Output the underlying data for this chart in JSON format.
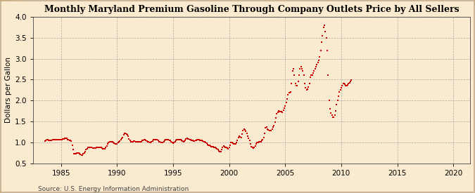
{
  "title": "Monthly Maryland Premium Gasoline Through Company Outlets Price by All Sellers",
  "ylabel": "Dollars per Gallon",
  "source": "Source: U.S. Energy Information Administration",
  "background_color": "#faebd0",
  "plot_bg_color": "#faebd0",
  "marker_color": "#cc0000",
  "ylim": [
    0.5,
    4.0
  ],
  "yticks": [
    0.5,
    1.0,
    1.5,
    2.0,
    2.5,
    3.0,
    3.5,
    4.0
  ],
  "xlim_start": 1982.5,
  "xlim_end": 2021.5,
  "xticks": [
    1985,
    1990,
    1995,
    2000,
    2005,
    2010,
    2015,
    2020
  ],
  "data": [
    [
      1983.583,
      1.03
    ],
    [
      1983.667,
      1.05
    ],
    [
      1983.75,
      1.06
    ],
    [
      1983.833,
      1.06
    ],
    [
      1983.917,
      1.05
    ],
    [
      1984.0,
      1.04
    ],
    [
      1984.083,
      1.05
    ],
    [
      1984.167,
      1.05
    ],
    [
      1984.25,
      1.06
    ],
    [
      1984.333,
      1.07
    ],
    [
      1984.417,
      1.06
    ],
    [
      1984.5,
      1.06
    ],
    [
      1984.583,
      1.06
    ],
    [
      1984.667,
      1.06
    ],
    [
      1984.75,
      1.07
    ],
    [
      1984.833,
      1.07
    ],
    [
      1984.917,
      1.07
    ],
    [
      1985.0,
      1.06
    ],
    [
      1985.083,
      1.07
    ],
    [
      1985.167,
      1.08
    ],
    [
      1985.25,
      1.08
    ],
    [
      1985.333,
      1.09
    ],
    [
      1985.417,
      1.09
    ],
    [
      1985.5,
      1.09
    ],
    [
      1985.583,
      1.07
    ],
    [
      1985.667,
      1.06
    ],
    [
      1985.75,
      1.05
    ],
    [
      1985.833,
      1.04
    ],
    [
      1985.917,
      1.03
    ],
    [
      1986.0,
      0.93
    ],
    [
      1986.083,
      0.82
    ],
    [
      1986.167,
      0.72
    ],
    [
      1986.25,
      0.72
    ],
    [
      1986.333,
      0.73
    ],
    [
      1986.417,
      0.74
    ],
    [
      1986.5,
      0.74
    ],
    [
      1986.583,
      0.74
    ],
    [
      1986.667,
      0.72
    ],
    [
      1986.75,
      0.71
    ],
    [
      1986.833,
      0.7
    ],
    [
      1986.917,
      0.7
    ],
    [
      1987.0,
      0.72
    ],
    [
      1987.083,
      0.74
    ],
    [
      1987.167,
      0.77
    ],
    [
      1987.25,
      0.82
    ],
    [
      1987.333,
      0.84
    ],
    [
      1987.417,
      0.87
    ],
    [
      1987.5,
      0.88
    ],
    [
      1987.583,
      0.88
    ],
    [
      1987.667,
      0.87
    ],
    [
      1987.75,
      0.87
    ],
    [
      1987.833,
      0.86
    ],
    [
      1987.917,
      0.86
    ],
    [
      1988.0,
      0.86
    ],
    [
      1988.083,
      0.86
    ],
    [
      1988.167,
      0.87
    ],
    [
      1988.25,
      0.87
    ],
    [
      1988.333,
      0.87
    ],
    [
      1988.417,
      0.88
    ],
    [
      1988.5,
      0.88
    ],
    [
      1988.583,
      0.87
    ],
    [
      1988.667,
      0.86
    ],
    [
      1988.75,
      0.85
    ],
    [
      1988.833,
      0.85
    ],
    [
      1988.917,
      0.85
    ],
    [
      1989.0,
      0.87
    ],
    [
      1989.083,
      0.91
    ],
    [
      1989.167,
      0.97
    ],
    [
      1989.25,
      1.0
    ],
    [
      1989.333,
      1.01
    ],
    [
      1989.417,
      1.02
    ],
    [
      1989.5,
      1.02
    ],
    [
      1989.583,
      1.01
    ],
    [
      1989.667,
      0.99
    ],
    [
      1989.75,
      0.98
    ],
    [
      1989.833,
      0.97
    ],
    [
      1989.917,
      0.97
    ],
    [
      1990.0,
      0.97
    ],
    [
      1990.083,
      0.99
    ],
    [
      1990.167,
      1.01
    ],
    [
      1990.25,
      1.03
    ],
    [
      1990.333,
      1.07
    ],
    [
      1990.417,
      1.1
    ],
    [
      1990.5,
      1.12
    ],
    [
      1990.583,
      1.18
    ],
    [
      1990.667,
      1.22
    ],
    [
      1990.75,
      1.21
    ],
    [
      1990.833,
      1.2
    ],
    [
      1990.917,
      1.18
    ],
    [
      1991.0,
      1.14
    ],
    [
      1991.083,
      1.08
    ],
    [
      1991.167,
      1.04
    ],
    [
      1991.25,
      1.02
    ],
    [
      1991.333,
      1.02
    ],
    [
      1991.417,
      1.02
    ],
    [
      1991.5,
      1.03
    ],
    [
      1991.583,
      1.03
    ],
    [
      1991.667,
      1.02
    ],
    [
      1991.75,
      1.01
    ],
    [
      1991.833,
      1.01
    ],
    [
      1991.917,
      1.01
    ],
    [
      1992.0,
      1.01
    ],
    [
      1992.083,
      1.01
    ],
    [
      1992.167,
      1.02
    ],
    [
      1992.25,
      1.04
    ],
    [
      1992.333,
      1.05
    ],
    [
      1992.417,
      1.06
    ],
    [
      1992.5,
      1.06
    ],
    [
      1992.583,
      1.05
    ],
    [
      1992.667,
      1.03
    ],
    [
      1992.75,
      1.02
    ],
    [
      1992.833,
      1.01
    ],
    [
      1992.917,
      1.0
    ],
    [
      1993.0,
      1.0
    ],
    [
      1993.083,
      1.01
    ],
    [
      1993.167,
      1.03
    ],
    [
      1993.25,
      1.06
    ],
    [
      1993.333,
      1.07
    ],
    [
      1993.417,
      1.07
    ],
    [
      1993.5,
      1.07
    ],
    [
      1993.583,
      1.06
    ],
    [
      1993.667,
      1.04
    ],
    [
      1993.75,
      1.02
    ],
    [
      1993.833,
      1.01
    ],
    [
      1993.917,
      1.0
    ],
    [
      1994.0,
      1.0
    ],
    [
      1994.083,
      1.0
    ],
    [
      1994.167,
      1.01
    ],
    [
      1994.25,
      1.04
    ],
    [
      1994.333,
      1.06
    ],
    [
      1994.417,
      1.07
    ],
    [
      1994.5,
      1.07
    ],
    [
      1994.583,
      1.06
    ],
    [
      1994.667,
      1.05
    ],
    [
      1994.75,
      1.04
    ],
    [
      1994.833,
      1.02
    ],
    [
      1994.917,
      0.99
    ],
    [
      1995.0,
      0.98
    ],
    [
      1995.083,
      0.99
    ],
    [
      1995.167,
      1.01
    ],
    [
      1995.25,
      1.04
    ],
    [
      1995.333,
      1.06
    ],
    [
      1995.417,
      1.07
    ],
    [
      1995.5,
      1.07
    ],
    [
      1995.583,
      1.07
    ],
    [
      1995.667,
      1.06
    ],
    [
      1995.75,
      1.05
    ],
    [
      1995.833,
      1.03
    ],
    [
      1995.917,
      1.02
    ],
    [
      1996.0,
      1.03
    ],
    [
      1996.083,
      1.05
    ],
    [
      1996.167,
      1.08
    ],
    [
      1996.25,
      1.09
    ],
    [
      1996.333,
      1.08
    ],
    [
      1996.417,
      1.08
    ],
    [
      1996.5,
      1.07
    ],
    [
      1996.583,
      1.06
    ],
    [
      1996.667,
      1.05
    ],
    [
      1996.75,
      1.04
    ],
    [
      1996.833,
      1.03
    ],
    [
      1996.917,
      1.03
    ],
    [
      1997.0,
      1.04
    ],
    [
      1997.083,
      1.05
    ],
    [
      1997.167,
      1.06
    ],
    [
      1997.25,
      1.07
    ],
    [
      1997.333,
      1.06
    ],
    [
      1997.417,
      1.05
    ],
    [
      1997.5,
      1.04
    ],
    [
      1997.583,
      1.04
    ],
    [
      1997.667,
      1.03
    ],
    [
      1997.75,
      1.02
    ],
    [
      1997.833,
      1.01
    ],
    [
      1997.917,
      1.0
    ],
    [
      1998.0,
      0.98
    ],
    [
      1998.083,
      0.95
    ],
    [
      1998.167,
      0.93
    ],
    [
      1998.25,
      0.92
    ],
    [
      1998.333,
      0.91
    ],
    [
      1998.417,
      0.9
    ],
    [
      1998.5,
      0.9
    ],
    [
      1998.583,
      0.89
    ],
    [
      1998.667,
      0.88
    ],
    [
      1998.75,
      0.87
    ],
    [
      1998.833,
      0.86
    ],
    [
      1998.917,
      0.84
    ],
    [
      1999.0,
      0.82
    ],
    [
      1999.083,
      0.8
    ],
    [
      1999.167,
      0.78
    ],
    [
      1999.25,
      0.78
    ],
    [
      1999.333,
      0.82
    ],
    [
      1999.417,
      0.88
    ],
    [
      1999.5,
      0.91
    ],
    [
      1999.583,
      0.9
    ],
    [
      1999.667,
      0.88
    ],
    [
      1999.75,
      0.87
    ],
    [
      1999.833,
      0.86
    ],
    [
      1999.917,
      0.85
    ],
    [
      2000.0,
      0.87
    ],
    [
      2000.083,
      0.92
    ],
    [
      2000.167,
      0.99
    ],
    [
      2000.25,
      0.99
    ],
    [
      2000.333,
      0.98
    ],
    [
      2000.417,
      0.97
    ],
    [
      2000.5,
      0.96
    ],
    [
      2000.583,
      0.97
    ],
    [
      2000.667,
      0.99
    ],
    [
      2000.75,
      1.05
    ],
    [
      2000.833,
      1.12
    ],
    [
      2000.917,
      1.15
    ],
    [
      2001.0,
      1.13
    ],
    [
      2001.083,
      1.11
    ],
    [
      2001.167,
      1.2
    ],
    [
      2001.25,
      1.28
    ],
    [
      2001.333,
      1.32
    ],
    [
      2001.417,
      1.3
    ],
    [
      2001.5,
      1.27
    ],
    [
      2001.583,
      1.22
    ],
    [
      2001.667,
      1.15
    ],
    [
      2001.75,
      1.1
    ],
    [
      2001.833,
      1.05
    ],
    [
      2001.917,
      0.96
    ],
    [
      2002.0,
      0.89
    ],
    [
      2002.083,
      0.87
    ],
    [
      2002.167,
      0.86
    ],
    [
      2002.25,
      0.87
    ],
    [
      2002.333,
      0.91
    ],
    [
      2002.417,
      0.96
    ],
    [
      2002.5,
      1.0
    ],
    [
      2002.583,
      1.0
    ],
    [
      2002.667,
      1.01
    ],
    [
      2002.75,
      1.02
    ],
    [
      2002.833,
      1.02
    ],
    [
      2002.917,
      1.04
    ],
    [
      2003.0,
      1.07
    ],
    [
      2003.083,
      1.12
    ],
    [
      2003.167,
      1.22
    ],
    [
      2003.25,
      1.35
    ],
    [
      2003.333,
      1.36
    ],
    [
      2003.417,
      1.32
    ],
    [
      2003.5,
      1.3
    ],
    [
      2003.583,
      1.28
    ],
    [
      2003.667,
      1.28
    ],
    [
      2003.75,
      1.28
    ],
    [
      2003.833,
      1.31
    ],
    [
      2003.917,
      1.36
    ],
    [
      2004.0,
      1.4
    ],
    [
      2004.083,
      1.48
    ],
    [
      2004.167,
      1.58
    ],
    [
      2004.25,
      1.68
    ],
    [
      2004.333,
      1.72
    ],
    [
      2004.417,
      1.75
    ],
    [
      2004.5,
      1.74
    ],
    [
      2004.583,
      1.74
    ],
    [
      2004.667,
      1.73
    ],
    [
      2004.75,
      1.72
    ],
    [
      2004.833,
      1.76
    ],
    [
      2004.917,
      1.82
    ],
    [
      2005.0,
      1.87
    ],
    [
      2005.083,
      1.95
    ],
    [
      2005.167,
      2.04
    ],
    [
      2005.25,
      2.14
    ],
    [
      2005.333,
      2.18
    ],
    [
      2005.417,
      2.18
    ],
    [
      2005.5,
      2.2
    ],
    [
      2005.583,
      2.4
    ],
    [
      2005.667,
      2.7
    ],
    [
      2005.75,
      2.75
    ],
    [
      2005.833,
      2.6
    ],
    [
      2005.917,
      2.4
    ],
    [
      2006.0,
      2.35
    ],
    [
      2006.083,
      2.35
    ],
    [
      2006.167,
      2.45
    ],
    [
      2006.25,
      2.6
    ],
    [
      2006.333,
      2.75
    ],
    [
      2006.417,
      2.8
    ],
    [
      2006.5,
      2.75
    ],
    [
      2006.583,
      2.7
    ],
    [
      2006.667,
      2.6
    ],
    [
      2006.75,
      2.4
    ],
    [
      2006.833,
      2.3
    ],
    [
      2006.917,
      2.25
    ],
    [
      2007.0,
      2.27
    ],
    [
      2007.083,
      2.32
    ],
    [
      2007.167,
      2.4
    ],
    [
      2007.25,
      2.55
    ],
    [
      2007.333,
      2.6
    ],
    [
      2007.417,
      2.6
    ],
    [
      2007.5,
      2.65
    ],
    [
      2007.583,
      2.7
    ],
    [
      2007.667,
      2.75
    ],
    [
      2007.75,
      2.8
    ],
    [
      2007.833,
      2.85
    ],
    [
      2007.917,
      2.9
    ],
    [
      2008.0,
      2.95
    ],
    [
      2008.083,
      3.05
    ],
    [
      2008.167,
      3.2
    ],
    [
      2008.25,
      3.4
    ],
    [
      2008.333,
      3.55
    ],
    [
      2008.417,
      3.75
    ],
    [
      2008.5,
      3.8
    ],
    [
      2008.583,
      3.65
    ],
    [
      2008.667,
      3.5
    ],
    [
      2008.75,
      3.2
    ],
    [
      2008.833,
      2.6
    ],
    [
      2008.917,
      2.0
    ],
    [
      2009.0,
      1.8
    ],
    [
      2009.083,
      1.7
    ],
    [
      2009.167,
      1.65
    ],
    [
      2009.25,
      1.6
    ],
    [
      2009.333,
      1.6
    ],
    [
      2009.417,
      1.65
    ],
    [
      2009.5,
      1.75
    ],
    [
      2009.583,
      1.9
    ],
    [
      2009.667,
      2.0
    ],
    [
      2009.75,
      2.1
    ],
    [
      2009.833,
      2.2
    ],
    [
      2009.917,
      2.25
    ],
    [
      2010.0,
      2.3
    ],
    [
      2010.083,
      2.35
    ],
    [
      2010.167,
      2.4
    ],
    [
      2010.25,
      2.4
    ],
    [
      2010.333,
      2.38
    ],
    [
      2010.417,
      2.35
    ],
    [
      2010.5,
      2.35
    ],
    [
      2010.583,
      2.37
    ],
    [
      2010.667,
      2.4
    ],
    [
      2010.75,
      2.42
    ],
    [
      2010.833,
      2.45
    ],
    [
      2010.917,
      2.48
    ]
  ]
}
